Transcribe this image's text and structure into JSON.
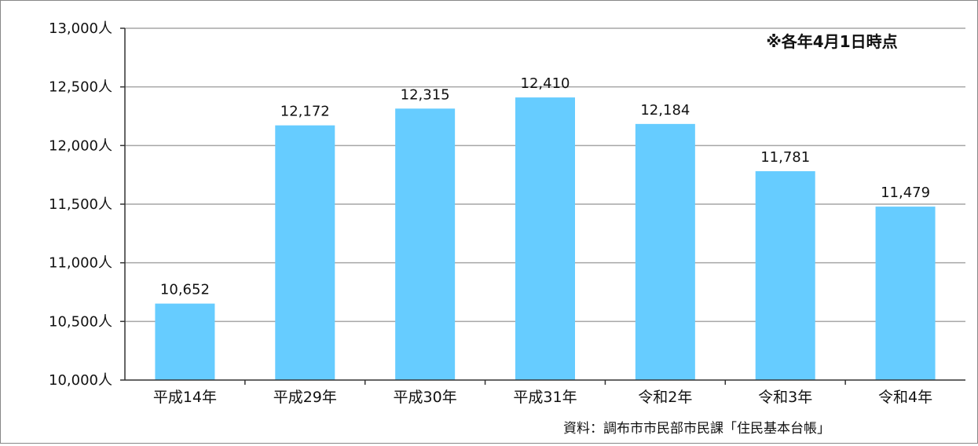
{
  "chart_data": {
    "type": "bar",
    "categories": [
      "平成14年",
      "平成29年",
      "平成30年",
      "平成31年",
      "令和2年",
      "令和3年",
      "令和4年"
    ],
    "values": [
      10652,
      12172,
      12315,
      12410,
      12184,
      11781,
      11479
    ],
    "value_labels": [
      "10,652",
      "12,172",
      "12,315",
      "12,410",
      "12,184",
      "11,781",
      "11,479"
    ],
    "y_ticks": [
      10000,
      10500,
      11000,
      11500,
      12000,
      12500,
      13000
    ],
    "y_tick_labels": [
      "10,000人",
      "10,500人",
      "11,000人",
      "11,500人",
      "12,000人",
      "12,500人",
      "13,000人"
    ],
    "ylim": [
      10000,
      13000
    ],
    "grid": true,
    "bar_color": "#66ccff",
    "note": "※各年4月1日時点",
    "source": "資料：調布市市民部市民課「住民基本台帳」",
    "title": "",
    "xlabel": "",
    "ylabel": ""
  }
}
